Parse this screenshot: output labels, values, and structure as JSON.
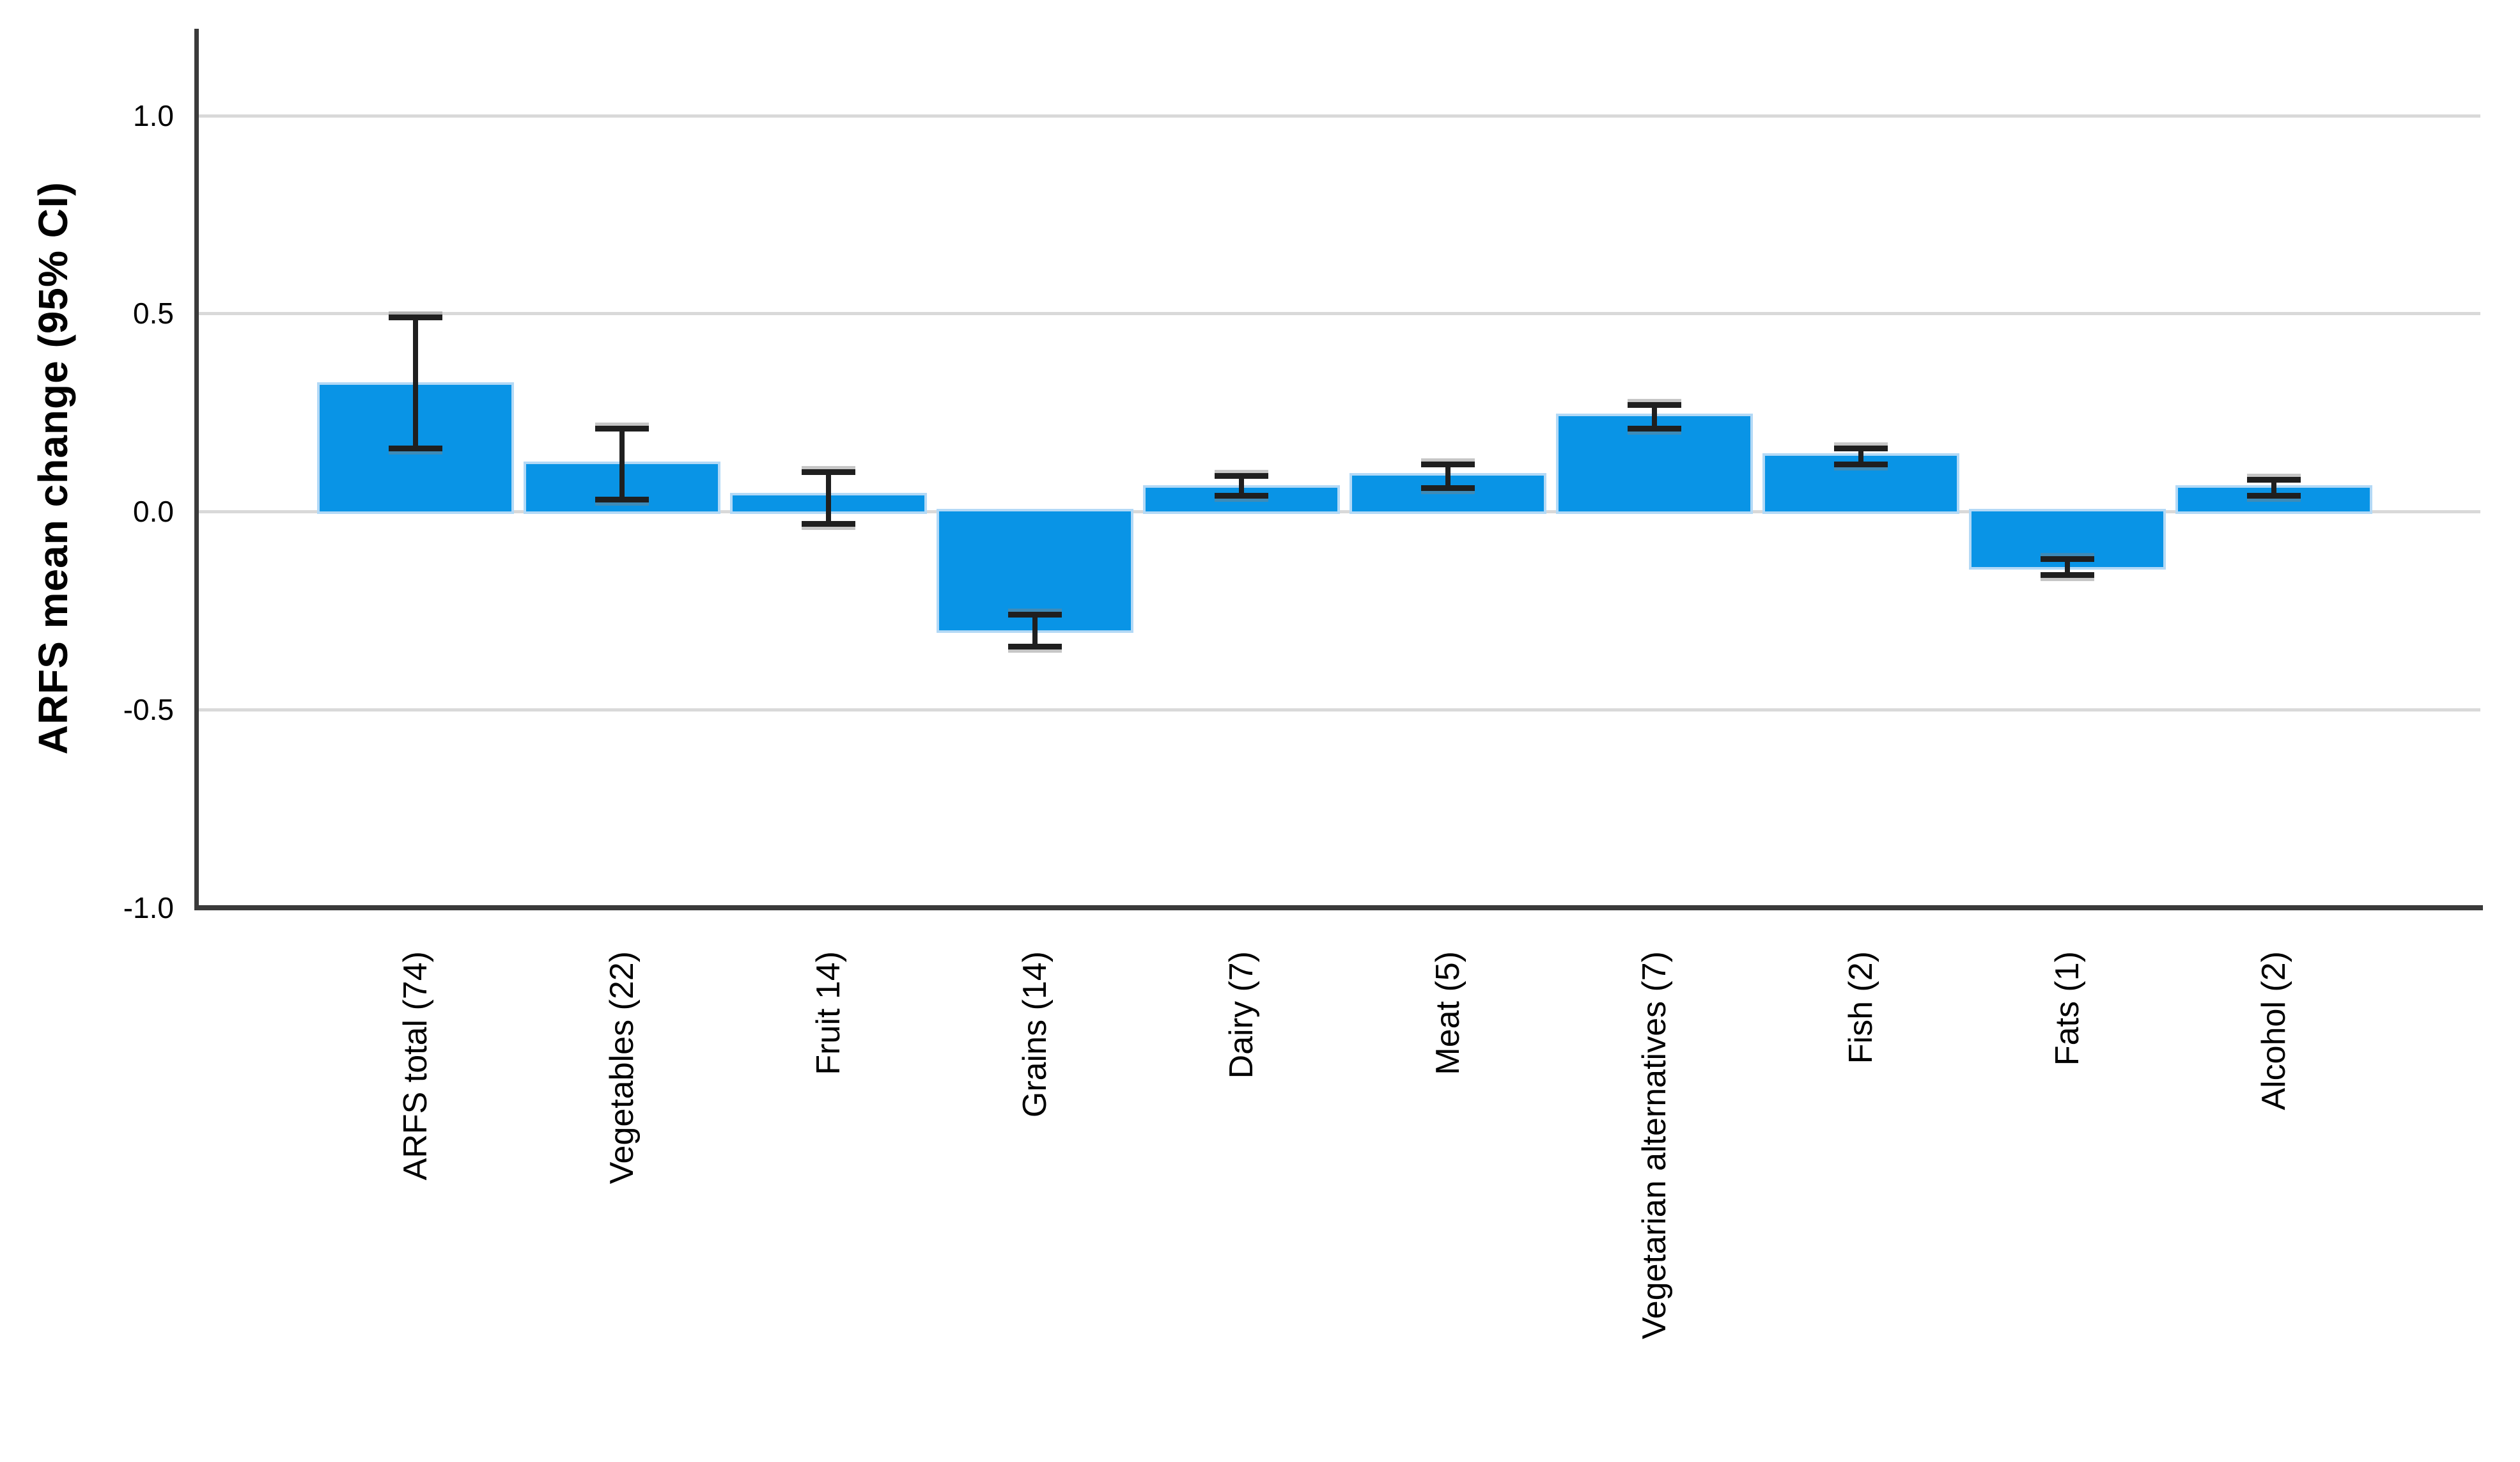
{
  "chart_data": {
    "type": "bar",
    "title": "",
    "ylabel": "ARFS mean change (95% CI)",
    "xlabel": "",
    "categories": [
      "ARFS total (74)",
      "Vegetables (22)",
      "Fruit 14)",
      "Grains (14)",
      "Dairy (7)",
      "Meat (5)",
      "Vegetarian alternatives (7)",
      "Fish (2)",
      "Fats (1)",
      "Alcohol (2)"
    ],
    "series": [
      {
        "name": "ARFS mean change",
        "values": [
          0.32,
          0.12,
          0.04,
          -0.3,
          0.06,
          0.09,
          0.24,
          0.14,
          -0.14,
          0.06
        ],
        "ci_low": [
          0.16,
          0.03,
          -0.03,
          -0.34,
          0.04,
          0.06,
          0.21,
          0.12,
          -0.16,
          0.04
        ],
        "ci_high": [
          0.49,
          0.21,
          0.1,
          -0.26,
          0.09,
          0.12,
          0.27,
          0.16,
          -0.12,
          0.08
        ]
      }
    ],
    "error_bars": "95% confidence interval, T-caps",
    "yticks": [
      1.0,
      0.5,
      0.0,
      -0.5,
      -1.0
    ],
    "ytick_labels": [
      "1.0",
      "0.5",
      "0.0",
      "-0.5",
      "-1.0"
    ],
    "ylim": [
      -1.0,
      1.22
    ],
    "gridlines_at": [
      1.0,
      0.5,
      0.0,
      -0.5
    ],
    "grid": "horizontal light-gray gridlines",
    "legend_position": "none",
    "colors": {
      "bar_fill": "#0994e6",
      "bar_edge": "#b3d9f6",
      "error_bar": "#1f1f1f",
      "gridline": "#d9d9d9",
      "axis": "#3a3a3a",
      "text": "#000000",
      "background": "#ffffff"
    }
  }
}
